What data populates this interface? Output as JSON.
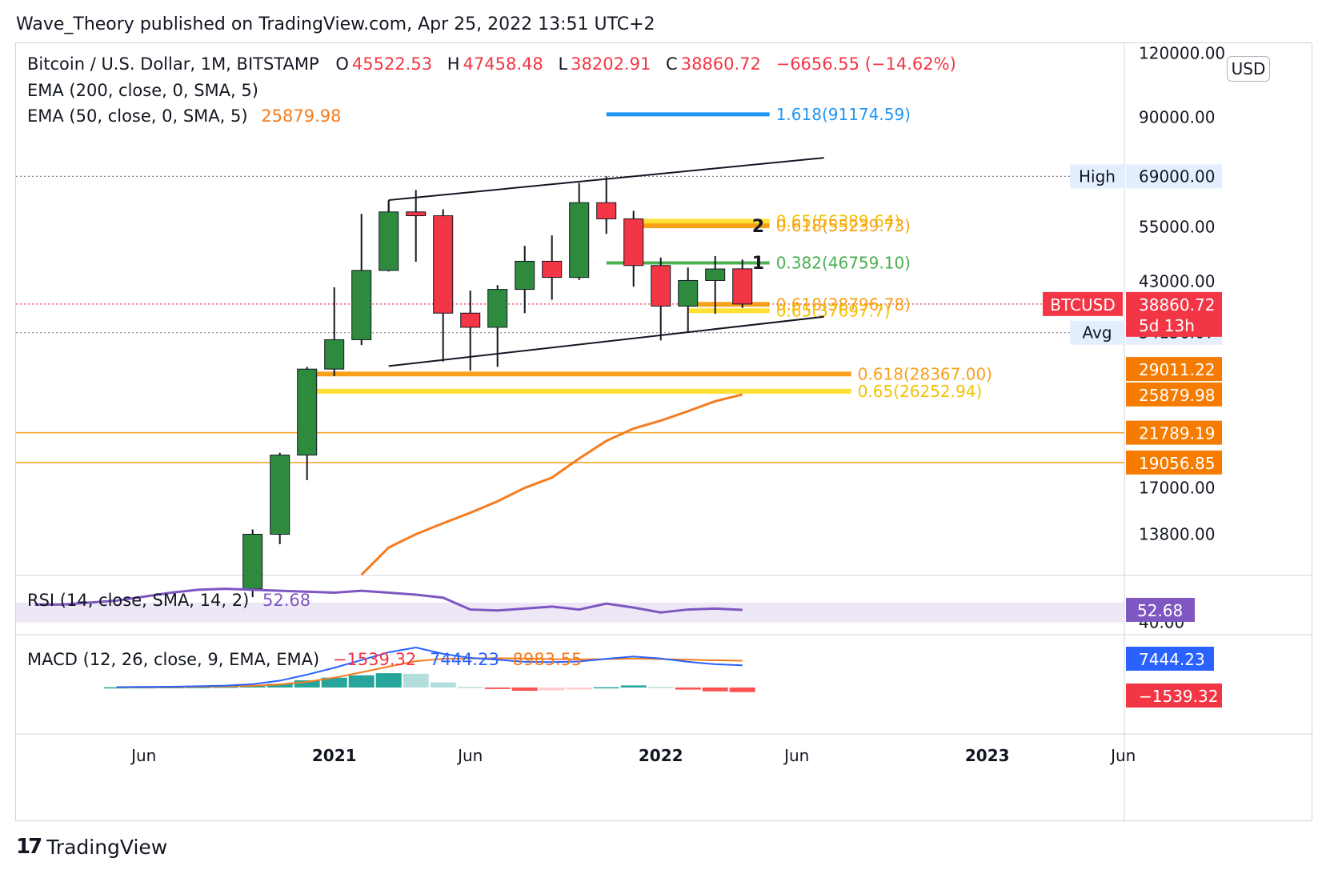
{
  "header": {
    "publisher_line": "Wave_Theory published on TradingView.com, Apr 25, 2022 13:51 UTC+2"
  },
  "footer": {
    "brand": "TradingView",
    "brand_mark": "17"
  },
  "legend": {
    "symbol": "Bitcoin / U.S. Dollar, 1M, BITSTAMP",
    "open_label": "O",
    "open": "45522.53",
    "high_label": "H",
    "high": "47458.48",
    "low_label": "L",
    "low": "38202.91",
    "close_label": "C",
    "close": "38860.72",
    "change": "−6656.55 (−14.62%)",
    "ema200": "EMA (200, close, 0, SMA, 5)",
    "ema50": "EMA (50, close, 0, SMA, 5)",
    "ema50_value": "25879.98",
    "rsi": "RSI (14, close, SMA, 14, 2)",
    "rsi_value": "52.68",
    "macd": "MACD (12, 26, close, 9, EMA, EMA)",
    "macd_hist": "−1539.32",
    "macd_line": "7444.23",
    "macd_signal": "8983.55"
  },
  "currency": "USD",
  "colors": {
    "up": "#2e8b3e",
    "down": "#f23645",
    "ema50": "#f57c1f",
    "rsi": "#7e57c2",
    "macd": "#2962ff",
    "signal": "#f57c1f",
    "fib_orange": "#f8a01a",
    "fib_yellow": "#ffe033",
    "fib_green": "#4caf50",
    "fib_blue": "#2196f3"
  },
  "chart_data": {
    "type": "candlestick",
    "symbol": "BTCUSD",
    "interval": "1M",
    "y_scale": "log",
    "ylim": [
      11800,
      122000
    ],
    "price_axis_ticks": [
      "120000.00",
      "90000.00",
      "55000.00",
      "43000.00",
      "17000.00",
      "13800.00"
    ],
    "time_axis_ticks": [
      "Jun",
      "2021",
      "Jun",
      "2022",
      "Jun",
      "2023",
      "Jun"
    ],
    "candles": [
      {
        "date": "2020-10",
        "open": 10800,
        "high": 14100,
        "low": 10400,
        "close": 13800
      },
      {
        "date": "2020-11",
        "open": 13800,
        "high": 19900,
        "low": 13200,
        "close": 19700
      },
      {
        "date": "2020-12",
        "open": 19700,
        "high": 29300,
        "low": 17600,
        "close": 29000
      },
      {
        "date": "2021-01",
        "open": 29000,
        "high": 41900,
        "low": 28100,
        "close": 33100
      },
      {
        "date": "2021-02",
        "open": 33100,
        "high": 58300,
        "low": 32300,
        "close": 45200
      },
      {
        "date": "2021-03",
        "open": 45200,
        "high": 61800,
        "low": 45000,
        "close": 58800
      },
      {
        "date": "2021-04",
        "open": 58800,
        "high": 64900,
        "low": 47000,
        "close": 57800
      },
      {
        "date": "2021-05",
        "open": 57800,
        "high": 59500,
        "low": 30000,
        "close": 37300
      },
      {
        "date": "2021-06",
        "open": 37300,
        "high": 41300,
        "low": 28800,
        "close": 35000
      },
      {
        "date": "2021-07",
        "open": 35000,
        "high": 42300,
        "low": 29300,
        "close": 41500
      },
      {
        "date": "2021-08",
        "open": 41500,
        "high": 50500,
        "low": 37300,
        "close": 47100
      },
      {
        "date": "2021-09",
        "open": 47100,
        "high": 52900,
        "low": 39600,
        "close": 43800
      },
      {
        "date": "2021-10",
        "open": 43800,
        "high": 67000,
        "low": 43300,
        "close": 61300
      },
      {
        "date": "2021-11",
        "open": 61300,
        "high": 69000,
        "low": 53300,
        "close": 57000
      },
      {
        "date": "2021-12",
        "open": 57000,
        "high": 59100,
        "low": 42000,
        "close": 46200
      },
      {
        "date": "2022-01",
        "open": 46200,
        "high": 47900,
        "low": 33000,
        "close": 38500
      },
      {
        "date": "2022-02",
        "open": 38500,
        "high": 45800,
        "low": 34300,
        "close": 43200
      },
      {
        "date": "2022-03",
        "open": 43200,
        "high": 48200,
        "low": 37200,
        "close": 45500
      },
      {
        "date": "2022-04",
        "open": 45522.53,
        "high": 47458.48,
        "low": 38202.91,
        "close": 38860.72
      }
    ],
    "ema50": [
      {
        "date": "2021-02",
        "value": 11500
      },
      {
        "date": "2021-03",
        "value": 13000
      },
      {
        "date": "2021-04",
        "value": 13800
      },
      {
        "date": "2021-05",
        "value": 14500
      },
      {
        "date": "2021-06",
        "value": 15200
      },
      {
        "date": "2021-07",
        "value": 16000
      },
      {
        "date": "2021-08",
        "value": 17000
      },
      {
        "date": "2021-09",
        "value": 17800
      },
      {
        "date": "2021-10",
        "value": 19400
      },
      {
        "date": "2021-11",
        "value": 21000
      },
      {
        "date": "2021-12",
        "value": 22200
      },
      {
        "date": "2022-01",
        "value": 23000
      },
      {
        "date": "2022-02",
        "value": 24000
      },
      {
        "date": "2022-03",
        "value": 25100
      },
      {
        "date": "2022-04",
        "value": 25879.98
      }
    ],
    "channel": [
      {
        "points": [
          {
            "date": "2021-03",
            "price": 62000
          },
          {
            "date": "2022-07",
            "price": 75000
          }
        ]
      },
      {
        "points": [
          {
            "date": "2021-03",
            "price": 29400
          },
          {
            "date": "2022-07",
            "price": 36700
          }
        ]
      },
      {
        "points": [
          {
            "date": "2021-03",
            "price": 58900
          },
          {
            "date": "2021-03",
            "price": 62000
          }
        ]
      }
    ],
    "fib_levels": [
      {
        "label": "1.618(91174.59)",
        "price": 91174.59,
        "color": "blue",
        "from": "2021-11",
        "to": "2022-05"
      },
      {
        "label": "0.65(56389.64)",
        "price": 56389.64,
        "color": "yellow",
        "from": "2021-12",
        "to": "2022-05"
      },
      {
        "label": "0.618(55239.73)",
        "price": 55239.73,
        "color": "orange",
        "from": "2021-12",
        "to": "2022-05"
      },
      {
        "label": "0.382(46759.10)",
        "price": 46759.1,
        "color": "green",
        "from": "2021-11",
        "to": "2022-05"
      },
      {
        "label": "0.618(38796.78)",
        "price": 38796.78,
        "color": "orange",
        "from": "2022-02",
        "to": "2022-05"
      },
      {
        "label": "0.65(37697.7)",
        "price": 37697.7,
        "color": "yellow",
        "from": "2022-02",
        "to": "2022-05"
      },
      {
        "label": "0.618(28367.00)",
        "price": 28367.0,
        "color": "orange",
        "from": "2020-12",
        "to": "2022-08"
      },
      {
        "label": "0.65(26252.94)",
        "price": 26252.94,
        "color": "yellow",
        "from": "2020-12",
        "to": "2022-08"
      }
    ],
    "horizontal_levels": [
      {
        "price": 21789.19,
        "label": "21789.19"
      },
      {
        "price": 19056.85,
        "label": "19056.85"
      }
    ],
    "dotted_levels": [
      {
        "price": 69000.0,
        "label": "High",
        "value": "69000.00"
      },
      {
        "price": 38860.72,
        "label": "BTCUSD",
        "value": "38860.72"
      },
      {
        "price": 34156.07,
        "label": "Avg",
        "value": "34156.07"
      }
    ],
    "price_tags": [
      {
        "label": "BTCUSD",
        "value": "38860.72",
        "sub": "5d 13h",
        "price": 38860.72,
        "color": "#f23645"
      },
      {
        "value": "29011.22",
        "price": 29011.22,
        "color": "#f57c00"
      },
      {
        "value": "25879.98",
        "price": 25879.98,
        "color": "#f57c00"
      },
      {
        "value": "21789.19",
        "price": 21789.19,
        "color": "#f57c00"
      },
      {
        "value": "19056.85",
        "price": 19056.85,
        "color": "#f57c00"
      }
    ],
    "wave_labels": [
      {
        "text": "1",
        "date": "2022-04",
        "price": 46800
      },
      {
        "text": "2",
        "date": "2022-04",
        "price": 55300
      }
    ],
    "rsi": {
      "values": [
        58,
        58,
        60,
        62,
        66,
        70,
        73,
        74,
        73,
        72,
        71,
        70,
        72,
        70,
        68,
        65,
        53,
        52,
        54,
        56,
        53,
        59,
        55,
        50,
        53,
        54,
        52.68
      ],
      "band": [
        40,
        60
      ],
      "axis_label": "40.00",
      "value": "52.68"
    },
    "macd": {
      "macd_line": [
        150,
        200,
        280,
        420,
        640,
        1100,
        2300,
        4300,
        6600,
        9200,
        11800,
        13400,
        11300,
        9900,
        9300,
        8600,
        8500,
        8700,
        9600,
        10400,
        9700,
        8600,
        7800,
        7444.23
      ],
      "signal_line": [
        60,
        100,
        150,
        230,
        360,
        580,
        1050,
        1900,
        3300,
        5100,
        7000,
        8800,
        9600,
        9700,
        9800,
        9700,
        9500,
        9400,
        9500,
        9700,
        9500,
        9300,
        9100,
        8983.55
      ],
      "histogram": [
        90,
        100,
        130,
        190,
        280,
        520,
        1250,
        2400,
        3300,
        4100,
        4800,
        4600,
        1700,
        200,
        -500,
        -1100,
        -1000,
        -700,
        100,
        700,
        200,
        -700,
        -1300,
        -1539.32
      ],
      "tags": {
        "line": "7444.23",
        "hist": "−1539.32"
      }
    }
  }
}
